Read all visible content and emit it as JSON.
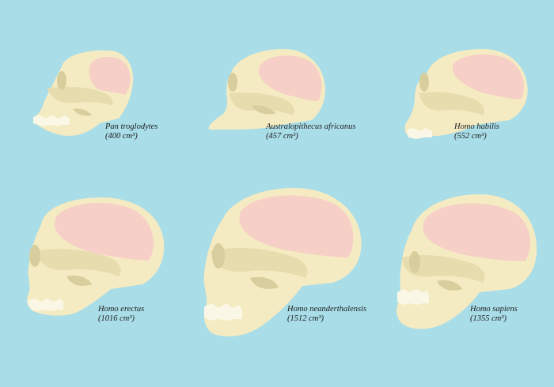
{
  "colors": {
    "background": "#a9dde8",
    "bone": "#f5ebc2",
    "bone_shade": "#e7dcae",
    "bone_dark": "#d8cd9c",
    "brain": "#f6cfc7",
    "teeth": "#fbf7e6"
  },
  "skulls": [
    {
      "id": "pan",
      "species": "Pan troglodytes",
      "volume": "(400 cm³)"
    },
    {
      "id": "australopithecus",
      "species": "Australopithecus africanus",
      "volume": "(457 cm³)"
    },
    {
      "id": "habilis",
      "species": "Homo habilis",
      "volume": "(552 cm³)"
    },
    {
      "id": "erectus",
      "species": "Homo erectus",
      "volume": "(1016 cm³)"
    },
    {
      "id": "neanderthalensis",
      "species": "Homo neanderthalensis",
      "volume": "(1512 cm³)"
    },
    {
      "id": "sapiens",
      "species": "Homo sapiens",
      "volume": "(1355 cm³)"
    }
  ]
}
